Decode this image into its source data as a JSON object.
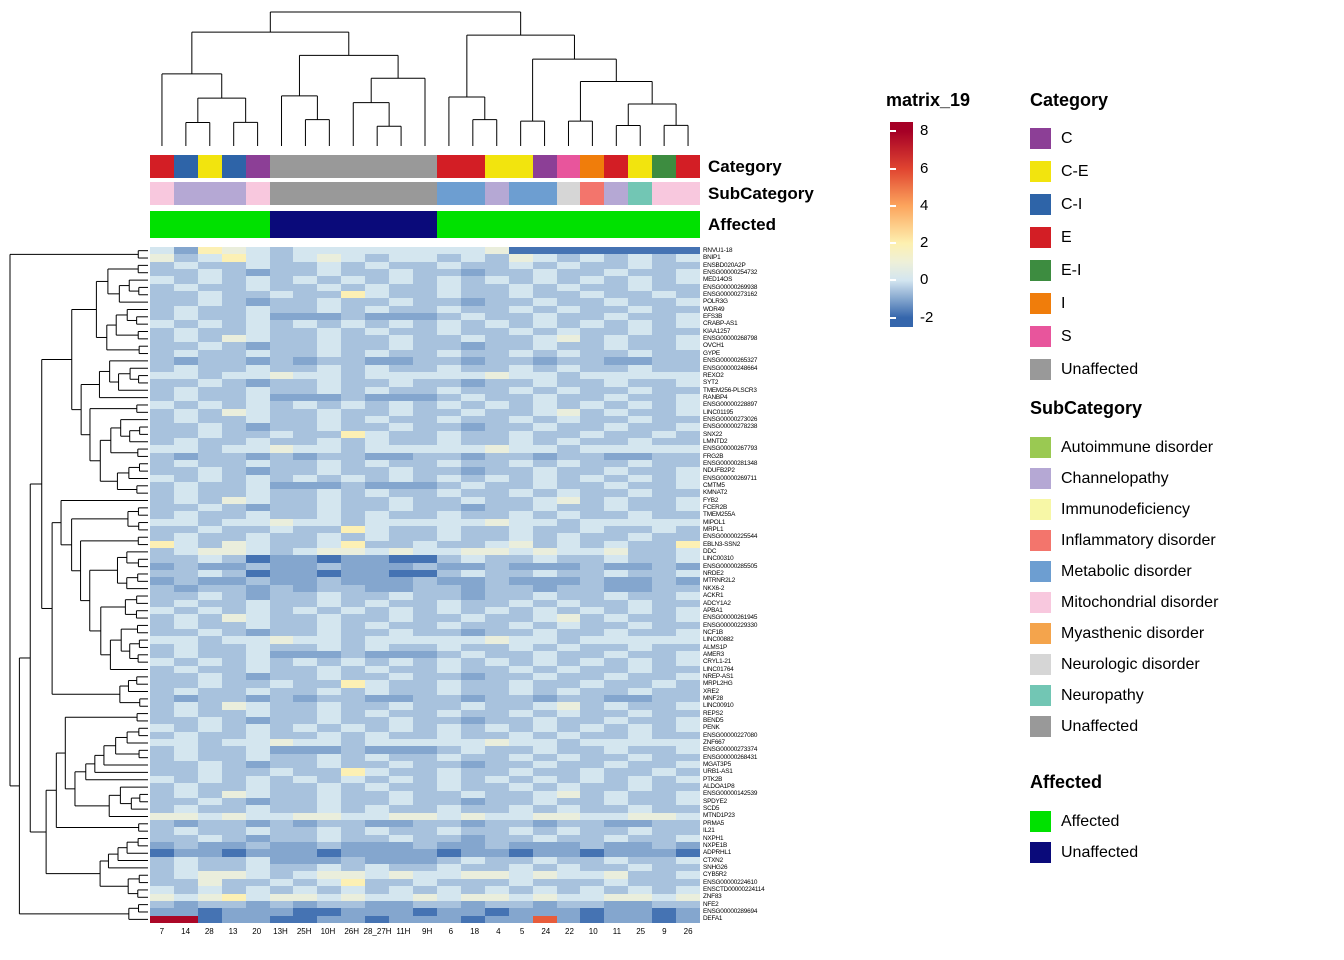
{
  "chart_data": {
    "type": "heatmap",
    "title": "",
    "legend_title": "matrix_19",
    "colorbar_ticks": [
      8,
      6,
      4,
      2,
      0,
      -2
    ],
    "colorbar_range": [
      -2.5,
      8.5
    ],
    "color_stops": [
      {
        "v": -2,
        "c": "#3566ac"
      },
      {
        "v": 0,
        "c": "#d3e5f0"
      },
      {
        "v": 1,
        "c": "#eef0d8"
      },
      {
        "v": 2,
        "c": "#fdf0b0"
      },
      {
        "v": 4,
        "c": "#fca55d"
      },
      {
        "v": 6,
        "c": "#e04430"
      },
      {
        "v": 8,
        "c": "#a50026"
      }
    ],
    "bucket_values": {
      "a": -1.8,
      "b": -1.0,
      "c": -0.55,
      "d": 0.05,
      "e": 0.85,
      "f": 1.9,
      "g": 3.2,
      "h": 5.5,
      "i": 7.8
    },
    "columns": [
      "7",
      "14",
      "28",
      "13",
      "20",
      "13H",
      "25H",
      "10H",
      "26H",
      "28_27H",
      "11H",
      "9H",
      "6",
      "18",
      "4",
      "5",
      "24",
      "22",
      "10",
      "11",
      "25",
      "9",
      "26"
    ],
    "rows": [
      "RNVU1-18",
      "BNIP1",
      "ENSBD020A2P",
      "ENSG00000254732",
      "MED14OS",
      "ENSG00000269938",
      "ENSG00000273162",
      "POLR3G",
      "WDR49",
      "EFS3B",
      "CRABP-AS1",
      "KIAA1257",
      "ENSG00000268798",
      "OVCH1",
      "GYPE",
      "ENSG00000265327",
      "ENSG00000248664",
      "REXO2",
      "SYT2",
      "TMEM256-PLSCR3",
      "RANBP4",
      "ENSG00000228897",
      "LINC01195",
      "ENSG00000273026",
      "ENSG00000278238",
      "SNX22",
      "LMNTD2",
      "ENSG00000267793",
      "FRG2B",
      "ENSG00000281348",
      "NDUFB2P2",
      "ENSG00000269711",
      "CMTM5",
      "KMNAT2",
      "FYB2",
      "FCER2B",
      "TMEM255A",
      "MIPOL1",
      "MRPL1",
      "ENSG00000225544",
      "EBLN3-SSN2",
      "DDC",
      "LINC00310",
      "ENSG00000285505",
      "NRDE2",
      "MTRNR2L2",
      "NKX6-2",
      "ACKR1",
      "ADCY1A2",
      "APBA1",
      "ENSG00000261945",
      "ENSG00000229330",
      "NCF1B",
      "LINC00882",
      "ALMS1P",
      "AMER3",
      "CRYL1-21",
      "LINC01764",
      "NREP-AS1",
      "MRPL2HG",
      "XRE2",
      "MNF28",
      "LINC00910",
      "REPS2",
      "BEND5",
      "PENK",
      "ENSG00000227080",
      "ZNF667",
      "ENSG00000273374",
      "ENSG00000268431",
      "MGAT3P5",
      "URB1-AS1",
      "PTK2B",
      "ALDOA1P8",
      "ENSG00000142539",
      "SPDYE2",
      "SCD5",
      "MTND1P23",
      "PRMA5",
      "IL21",
      "NXPH1",
      "NXPE1B",
      "ADPRHL1",
      "CTXN2",
      "SNHG26",
      "CYB5R2",
      "ENSG00000224610",
      "ENSCTD00000224114",
      "ZNF83",
      "NFE2",
      "ENSG00000289694",
      "DEFA1"
    ],
    "values_bucketed": [
      "dbfedcddddddddeaaaaaaaa",
      "ecdfdcdedcddcdcedcdcdcd",
      "cdccdccdcdccdccdcdccdcc",
      "ccdcbccdccdccbccdccdccd",
      "dcdcdcdcdcdcdcdcdcdcdcd",
      "cdccdccdcdccdccdcdccdcc",
      "ccdccdccfdccdccdccdccdc",
      "ccdcbccdccdccbccdccdccd",
      "cdccdccdcdccdccdcdccdcc",
      "cdccdbbbcbbbcdccdccdccd",
      "dcdcdcdcdcdcdcdcdcdcdcd",
      "cdccdccdcdccdccdcdccdcc",
      "cdcedccdccdccdccdecdccd",
      "ccdcbccdccdccbccdccdccd",
      "cdccdccdcdccdccdcdccdcc",
      "cbccbcbccbbccbccbccbbcc",
      "cdccdccdcdccdccdcdccdcc",
      "ddcddeddcdddddeddcddddd",
      "ccdcbccdccdccbccdccdccd",
      "cdccdccdcdccdccdcdccdcc",
      "cdccdbbbcbbbcdccdccdccd",
      "dcdcdcdcdcdcdcdcdcdcdcd",
      "cdcedccdccdccdccdecdccd",
      "cdccdccdcdccdccdcdccdcc",
      "ccdcbccdccdccbccdccdccd",
      "ccdccdccfdccdccdccdccdc",
      "cdccdccdcdccdccdcdccdcc",
      "ddcddeddcdddddeddcddddd",
      "cbccbcbccbbccbccbccbbcc",
      "cdccdccdcdccdccdcdccdcc",
      "ccdcbccdccdccbccdccdccd",
      "dcdcdcdcdcdcdcdcdcdcdcd",
      "cdccdbbbcbbbcdccdccdccd",
      "cdccdccdcdccdccdcdccdcc",
      "cdcedccdccdccdccdecdccd",
      "ccdcbccdccdccbccdccdccd",
      "cdccdccdcdccdccdcdccdcc",
      "ddcddeddcdddddeddcddddd",
      "ccdccdccfdccdccdccdccdc",
      "cdccdccdcdccdccdcdccdcc",
      "fdcedccdfccdccdecdcdccf",
      "cdeedcdeededdeededdeccd",
      "ccdcabbabbaacdccdccdccd",
      "bcbbcbbcbbbcbbcbbbcbbcb",
      "ccdcabbabbaacdccdccdccd",
      "bcbbcbbcbbbcbbcbbbcbbcb",
      "cbccbcbccbbccbccbccbbcc",
      "ccdcbccdccdccbccdccdccd",
      "cdccdccdcdccdccdcdccdcc",
      "dcdcdcdcdcdcdcdcdcdcdcd",
      "cdcedccdccdccdccdecdccd",
      "cdccdccdcdccdccdcdccdcc",
      "ccdcbccdccdccbccdccdccd",
      "ddcddeddcdddddeddcddddd",
      "cdccdccdcdccdccdcdccdcc",
      "cdccdbbbcbbbcdccdccdccd",
      "dcdcdcdcdcdcdcdcdcdcdcd",
      "cdccdccdcdccdccdcdccdcc",
      "ccdcbccdccdccbccdccdccd",
      "ccdccdccfdccdccdccdccdc",
      "cdccdccdcdccdccdcdccdcc",
      "cbccbcbccbbccbccbccbbcc",
      "cdcedccdccdccdccdecdccd",
      "cdccdccdcdccdccdcdccdcc",
      "ccdcbccdccdccbccdccdccd",
      "dcdcdcdcdcdcdcdcdcdcdcd",
      "cdccdccdcdccdccdcdccdcc",
      "ddcddeddcdddddeddcddddd",
      "cdccdbbbcbbbcdccdccdccd",
      "cdccdccdcdccdccdcdccdcc",
      "ccdcbccdccdccbccdccdccd",
      "ccdccdccfdccdccdccdccdc",
      "dcdcdcdcdcdcdcdcdcdcdcd",
      "cdccdccdcdccdccdcdccdcc",
      "cdcedccdccdccdccdecdccd",
      "ccdcbccdccdccbccdccdccd",
      "cdccdccdcdccdccdcdccdcc",
      "eededdeeddeededdeeddeed",
      "cbccbcbccbbccbccbccbbcc",
      "cdccdccdcdccdccdcdccdcc",
      "ccdcbccdccdccbccdccdccd",
      "bcbbcbbcbbbcbbcbbbcbbcb",
      "abbabbbabbbbabbabbabbba",
      "cdccdbbbcbbbcdccdccdccd",
      "cdccdccdcdccdccdcdccdcc",
      "cdeedcdeededdeededdeccd",
      "cceccdcdfccdcccdcccdccc",
      "dcdcdcdcdcdcdcdcdcdcdcd",
      "edefdeededdedeededdeede",
      "cbccbcbccbbccbccbccbbcc",
      "bbabbbaabbbabbabbbabbab",
      "iiabbaabbabbbabbhbabbab"
    ],
    "annotation_rows": [
      "Category",
      "SubCategory",
      "Affected"
    ],
    "column_annotations": {
      "Category": [
        "E",
        "C-I",
        "C-E",
        "C-I",
        "C",
        "Unaffected",
        "Unaffected",
        "Unaffected",
        "Unaffected",
        "Unaffected",
        "Unaffected",
        "Unaffected",
        "E",
        "E",
        "C-E",
        "C-E",
        "C",
        "S",
        "I",
        "E",
        "C-E",
        "E-I",
        "E"
      ],
      "SubCategory": [
        "Mitochondrial disorder",
        "Channelopathy",
        "Channelopathy",
        "Channelopathy",
        "Mitochondrial disorder",
        "Unaffected",
        "Unaffected",
        "Unaffected",
        "Unaffected",
        "Unaffected",
        "Unaffected",
        "Unaffected",
        "Metabolic disorder",
        "Metabolic disorder",
        "Channelopathy",
        "Metabolic disorder",
        "Metabolic disorder",
        "Neurologic disorder",
        "Inflammatory disorder",
        "Channelopathy",
        "Neuropathy",
        "Mitochondrial disorder",
        "Mitochondrial disorder"
      ],
      "Affected": [
        "Affected",
        "Affected",
        "Affected",
        "Affected",
        "Affected",
        "Unaffected",
        "Unaffected",
        "Unaffected",
        "Unaffected",
        "Unaffected",
        "Unaffected",
        "Unaffected",
        "Affected",
        "Affected",
        "Affected",
        "Affected",
        "Affected",
        "Affected",
        "Affected",
        "Affected",
        "Affected",
        "Affected",
        "Affected"
      ]
    },
    "annotation_colors": {
      "Category": {
        "C": "#8c3f96",
        "C-E": "#f2e40e",
        "C-I": "#2e64a8",
        "E": "#d31e25",
        "E-I": "#3d8c40",
        "I": "#f07d0b",
        "S": "#e8559c",
        "Unaffected": "#999999"
      },
      "SubCategory": {
        "Autoimmune disorder": "#9ac952",
        "Channelopathy": "#b5a8d4",
        "Immunodeficiency": "#f7f7a6",
        "Inflammatory disorder": "#f3756c",
        "Metabolic disorder": "#6d9ed1",
        "Mitochondrial disorder": "#f8c8de",
        "Myasthenic disorder": "#f4a44c",
        "Neurologic disorder": "#d6d6d6",
        "Neuropathy": "#72c6b4",
        "Unaffected": "#999999"
      },
      "Affected": {
        "Affected": "#00e100",
        "Unaffected": "#0a0a7a"
      }
    },
    "column_tree": [
      [
        [
          0,
          [
            [
              1,
              2
            ],
            [
              3,
              4
            ]
          ]
        ],
        [
          [
            5,
            [
              6,
              7
            ]
          ],
          [
            [
              8,
              [
                9,
                10
              ]
            ],
            11
          ]
        ]
      ],
      [
        [
          12,
          [
            13,
            14
          ]
        ],
        [
          [
            15,
            16
          ],
          [
            [
              17,
              18
            ],
            [
              [
                19,
                20
              ],
              [
                21,
                22
              ]
            ]
          ]
        ]
      ]
    ],
    "legends": {
      "category": {
        "title": "Category",
        "items": [
          {
            "label": "C",
            "color": "#8c3f96"
          },
          {
            "label": "C-E",
            "color": "#f2e40e"
          },
          {
            "label": "C-I",
            "color": "#2e64a8"
          },
          {
            "label": "E",
            "color": "#d31e25"
          },
          {
            "label": "E-I",
            "color": "#3d8c40"
          },
          {
            "label": "I",
            "color": "#f07d0b"
          },
          {
            "label": "S",
            "color": "#e8559c"
          },
          {
            "label": "Unaffected",
            "color": "#999999"
          }
        ]
      },
      "subcategory": {
        "title": "SubCategory",
        "items": [
          {
            "label": "Autoimmune disorder",
            "color": "#9ac952"
          },
          {
            "label": "Channelopathy",
            "color": "#b5a8d4"
          },
          {
            "label": "Immunodeficiency",
            "color": "#f7f7a6"
          },
          {
            "label": "Inflammatory disorder",
            "color": "#f3756c"
          },
          {
            "label": "Metabolic disorder",
            "color": "#6d9ed1"
          },
          {
            "label": "Mitochondrial disorder",
            "color": "#f8c8de"
          },
          {
            "label": "Myasthenic disorder",
            "color": "#f4a44c"
          },
          {
            "label": "Neurologic disorder",
            "color": "#d6d6d6"
          },
          {
            "label": "Neuropathy",
            "color": "#72c6b4"
          },
          {
            "label": "Unaffected",
            "color": "#999999"
          }
        ]
      },
      "affected": {
        "title": "Affected",
        "items": [
          {
            "label": "Affected",
            "color": "#00e100"
          },
          {
            "label": "Unaffected",
            "color": "#0a0a7a"
          }
        ]
      }
    },
    "layout_hints": {
      "top_dendrogram": true,
      "left_dendrogram": true,
      "grid": false,
      "legend_position": "right"
    }
  }
}
